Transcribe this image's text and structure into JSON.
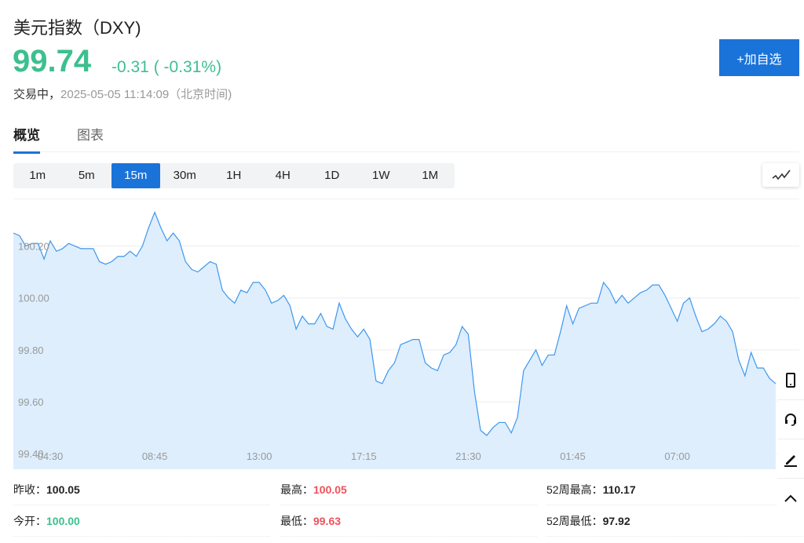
{
  "header": {
    "title": "美元指数（DXY)",
    "price": "99.74",
    "change": "-0.31 ( -0.31%)",
    "status": "交易中，",
    "time": "2025-05-05 11:14:09（北京时间)",
    "add_button": "+加自选",
    "up_color": "#3dbf8f",
    "accent": "#1a73d9"
  },
  "tabs": [
    {
      "label": "概览",
      "active": true
    },
    {
      "label": "图表",
      "active": false
    }
  ],
  "periods": [
    {
      "label": "1m"
    },
    {
      "label": "5m"
    },
    {
      "label": "15m",
      "active": true
    },
    {
      "label": "30m"
    },
    {
      "label": "1H"
    },
    {
      "label": "4H"
    },
    {
      "label": "1D"
    },
    {
      "label": "1W"
    },
    {
      "label": "1M"
    }
  ],
  "chart_type_icon": "line-chart-icon",
  "chart_data": {
    "type": "area",
    "line_color": "#3d97f0",
    "fill_color": "#deeefd",
    "ylim": [
      99.34,
      100.38
    ],
    "yticks": [
      "100.20",
      "100.00",
      "99.80",
      "99.60",
      "99.40"
    ],
    "xticks": [
      {
        "label": "04:30",
        "index": 6
      },
      {
        "label": "08:45",
        "index": 23
      },
      {
        "label": "13:00",
        "index": 40
      },
      {
        "label": "17:15",
        "index": 57
      },
      {
        "label": "21:30",
        "index": 74
      },
      {
        "label": "01:45",
        "index": 91
      },
      {
        "label": "07:00",
        "index": 108
      }
    ],
    "grid": true,
    "values": [
      100.25,
      100.24,
      100.2,
      100.21,
      100.21,
      100.15,
      100.22,
      100.18,
      100.19,
      100.21,
      100.2,
      100.19,
      100.19,
      100.19,
      100.14,
      100.13,
      100.14,
      100.16,
      100.16,
      100.18,
      100.16,
      100.2,
      100.27,
      100.33,
      100.27,
      100.22,
      100.25,
      100.22,
      100.14,
      100.11,
      100.1,
      100.12,
      100.14,
      100.13,
      100.03,
      100.0,
      99.98,
      100.03,
      100.02,
      100.06,
      100.06,
      100.03,
      99.98,
      99.99,
      100.01,
      99.97,
      99.88,
      99.93,
      99.9,
      99.9,
      99.94,
      99.89,
      99.88,
      99.98,
      99.92,
      99.88,
      99.85,
      99.88,
      99.84,
      99.68,
      99.67,
      99.72,
      99.75,
      99.82,
      99.83,
      99.84,
      99.84,
      99.75,
      99.73,
      99.72,
      99.78,
      99.79,
      99.82,
      99.89,
      99.86,
      99.64,
      99.49,
      99.47,
      99.5,
      99.52,
      99.52,
      99.48,
      99.54,
      99.72,
      99.76,
      99.8,
      99.74,
      99.78,
      99.78,
      99.87,
      99.97,
      99.9,
      99.96,
      99.97,
      99.98,
      99.98,
      100.06,
      100.03,
      99.98,
      100.01,
      99.98,
      100.0,
      100.02,
      100.03,
      100.05,
      100.05,
      100.01,
      99.96,
      99.91,
      99.98,
      100.0,
      99.93,
      99.87,
      99.88,
      99.9,
      99.93,
      99.91,
      99.87,
      99.76,
      99.7,
      99.79,
      99.73,
      99.73,
      99.69,
      99.67
    ]
  },
  "stats": [
    {
      "label": "昨收：",
      "value": "100.05",
      "color": "#222222"
    },
    {
      "label": "最高：",
      "value": "100.05",
      "color": "#f0515a"
    },
    {
      "label": "52周最高：",
      "value": "110.17",
      "color": "#222222"
    },
    {
      "label": "今开：",
      "value": "100.00",
      "color": "#3dbf8f"
    },
    {
      "label": "最低：",
      "value": "99.63",
      "color": "#f0515a"
    },
    {
      "label": "52周最低：",
      "value": "97.92",
      "color": "#222222"
    }
  ],
  "sidebar": [
    "mobile-icon",
    "headset-icon",
    "pencil-icon",
    "chevron-up-icon"
  ]
}
